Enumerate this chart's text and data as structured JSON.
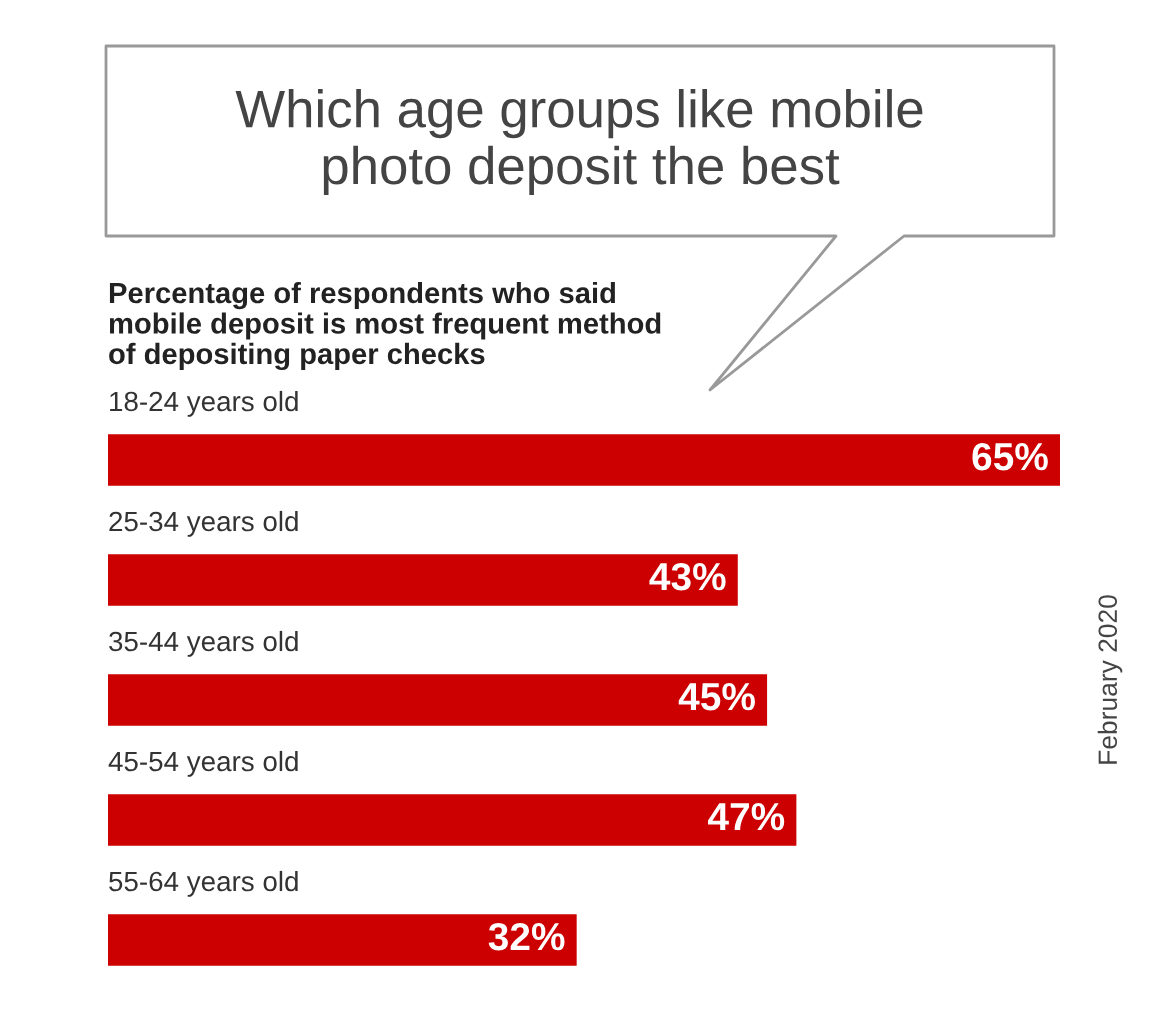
{
  "chart_data": {
    "type": "bar",
    "orientation": "horizontal",
    "title": "Which age groups like mobile\nphoto deposit the best",
    "subtitle": "Percentage of respondents who said\nmobile deposit is most frequent method\nof depositing paper checks",
    "categories": [
      "18-24 years old",
      "25-34 years old",
      "35-44 years old",
      "45-54 years old",
      "55-64 years old"
    ],
    "values": [
      65,
      43,
      45,
      47,
      32
    ],
    "value_labels": [
      "65%",
      "43%",
      "45%",
      "47%",
      "32%"
    ],
    "color": "#cc0000",
    "xlim": [
      0,
      65
    ],
    "annotations": [
      "February 2020"
    ]
  }
}
